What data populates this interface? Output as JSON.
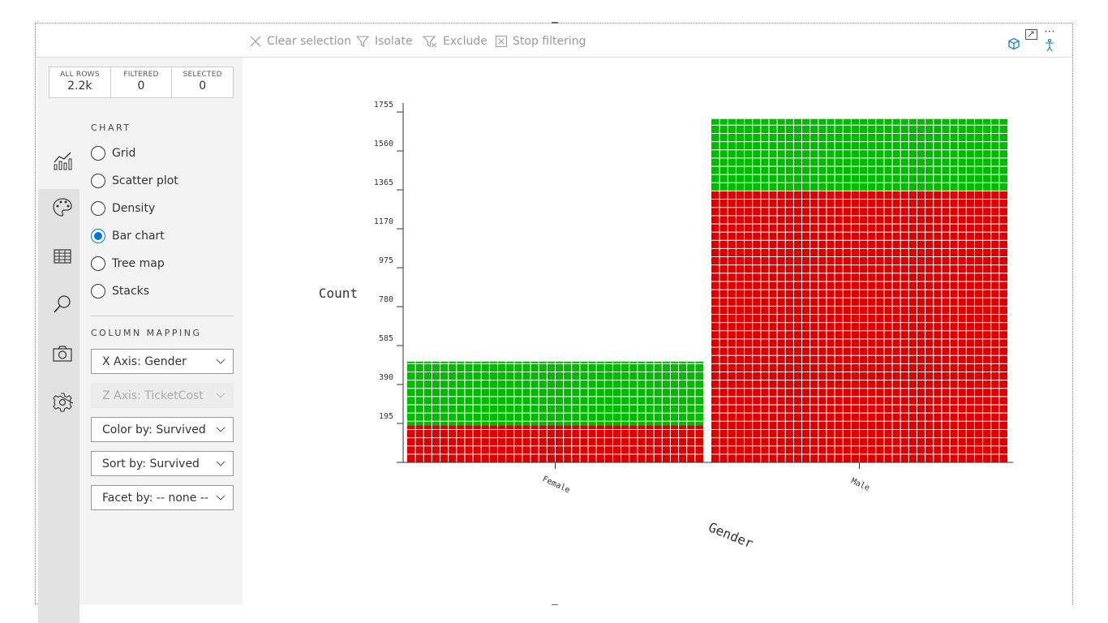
{
  "toolbar": {
    "clear_selection": "Clear selection",
    "isolate": "Isolate",
    "exclude": "Exclude",
    "stop_filtering": "Stop filtering"
  },
  "counts": {
    "all_rows_label": "ALL ROWS",
    "all_rows_value": "2.2k",
    "filtered_label": "FILTERED",
    "filtered_value": "0",
    "selected_label": "SELECTED",
    "selected_value": "0"
  },
  "sidebar": {
    "icons": [
      "chart-icon",
      "palette-icon",
      "table-icon",
      "search-icon",
      "camera-icon",
      "gear-icon"
    ]
  },
  "chart_options": {
    "title": "CHART",
    "items": [
      {
        "label": "Grid",
        "checked": false
      },
      {
        "label": "Scatter plot",
        "checked": false
      },
      {
        "label": "Density",
        "checked": false
      },
      {
        "label": "Bar chart",
        "checked": true
      },
      {
        "label": "Tree map",
        "checked": false
      },
      {
        "label": "Stacks",
        "checked": false
      }
    ]
  },
  "column_mapping": {
    "title": "COLUMN MAPPING",
    "x_axis": "X Axis: Gender",
    "z_axis": "Z Axis: TicketCost",
    "color_by": "Color by: Survived",
    "sort_by": "Sort by: Survived",
    "facet_by": "Facet by: -- none --"
  },
  "colors": {
    "green": "#00bb00",
    "red": "#dd0000",
    "accent": "#0078d4"
  },
  "chart_data": {
    "type": "bar",
    "xlabel": "Gender",
    "ylabel": "Count",
    "categories": [
      "Female",
      "Male"
    ],
    "y_ticks": [
      195,
      390,
      585,
      780,
      975,
      1170,
      1365,
      1560,
      1755
    ],
    "ylim": [
      0,
      1800
    ],
    "series": [
      {
        "values": [
          185,
          1360
        ],
        "color": "#dd0000"
      },
      {
        "values": [
          320,
          360
        ],
        "color": "#00bb00"
      }
    ]
  }
}
